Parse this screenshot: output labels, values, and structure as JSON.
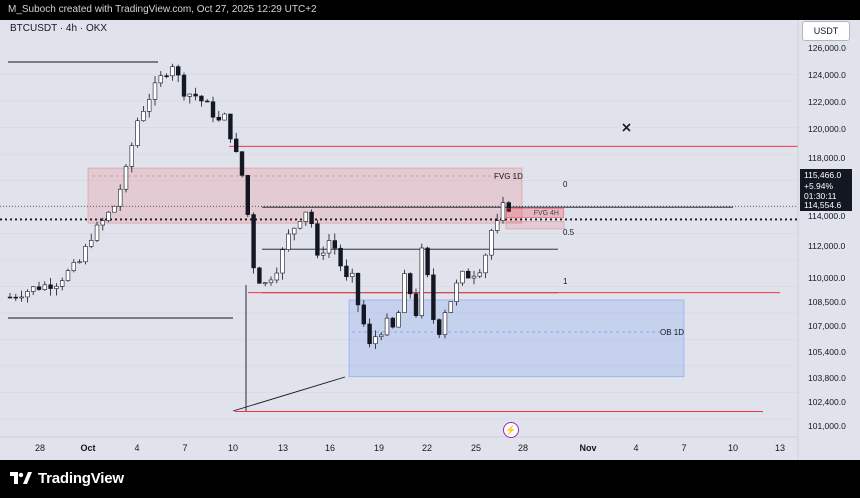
{
  "header": {
    "caption": "M_Suboch created with TradingView.com, Oct 27, 2025 12:29 UTC+2"
  },
  "chart": {
    "symbol": "BTCUSDT · 4h · OKX",
    "currency_button": "USDT",
    "price_tag": {
      "price": "115,466.0",
      "change": "+5.94%",
      "countdown": "01:30:11"
    },
    "level_tag": "114,554.6",
    "annotations": {
      "fvg_1d": "FVG 1D",
      "fvg_4h": "FVG 4H",
      "fib_0": "0",
      "fib_05": "0.5",
      "fib_1": "1",
      "ob_1d": "OB 1D"
    }
  },
  "y_axis": [
    "126,000.0",
    "124,000.0",
    "122,000.0",
    "120,000.0",
    "118,000.0",
    "116,000.0",
    "114,000.0",
    "112,000.0",
    "110,000.0",
    "108,500.0",
    "107,000.0",
    "105,400.0",
    "103,800.0",
    "102,400.0",
    "101,000.0"
  ],
  "x_axis": [
    "28",
    "Oct",
    "4",
    "7",
    "10",
    "13",
    "16",
    "19",
    "22",
    "25",
    "28",
    "Nov",
    "4",
    "7",
    "10",
    "13"
  ],
  "footer": {
    "logo_text": "TradingView"
  },
  "colors": {
    "bull": "#089981",
    "bear": "#f23645",
    "candle": "#131722",
    "fvg": "#f23645",
    "ob": "#2962ff",
    "background": "#e0e3eb"
  },
  "chart_data": {
    "type": "candlestick",
    "symbol": "BTCUSDT",
    "interval": "4h",
    "exchange": "OKX",
    "last_price": 115466.0,
    "change_percent": 5.94,
    "ylim": [
      100300,
      126800
    ],
    "zones": [
      {
        "label": "FVG 1D",
        "from_price": 114300,
        "to_price": 118100,
        "color": "#f23645"
      },
      {
        "label": "FVG 4H",
        "from_price": 113900,
        "to_price": 114400,
        "color": "#f23645"
      },
      {
        "label": "OB 1D",
        "from_price": 103700,
        "to_price": 109000,
        "color": "#2962ff"
      }
    ],
    "levels": [
      {
        "label": "0",
        "price": 115400
      },
      {
        "label": "0.5",
        "price": 112500
      },
      {
        "label": "1",
        "price": 109500
      },
      {
        "label": "",
        "price": 114554.6
      },
      {
        "label": "",
        "price": 119600
      },
      {
        "label": "",
        "price": 109500
      },
      {
        "label": "",
        "price": 101300
      }
    ],
    "price_path": [
      [
        0,
        109200
      ],
      [
        4,
        109800
      ],
      [
        8,
        110200
      ],
      [
        12,
        111600
      ],
      [
        14,
        113400
      ],
      [
        16,
        114400
      ],
      [
        18,
        115500
      ],
      [
        20,
        117900
      ],
      [
        22,
        121400
      ],
      [
        24,
        123000
      ],
      [
        26,
        124300
      ],
      [
        28,
        125300
      ],
      [
        30,
        123400
      ],
      [
        32,
        123100
      ],
      [
        34,
        122400
      ],
      [
        36,
        121300
      ],
      [
        37,
        121600
      ],
      [
        38,
        120400
      ],
      [
        40,
        117600
      ],
      [
        41,
        114900
      ],
      [
        42,
        111400
      ],
      [
        43,
        110400
      ],
      [
        44,
        110100
      ],
      [
        46,
        111200
      ],
      [
        48,
        113400
      ],
      [
        50,
        114700
      ],
      [
        51,
        115200
      ],
      [
        52,
        114300
      ],
      [
        53,
        111800
      ],
      [
        54,
        112500
      ],
      [
        55,
        113100
      ],
      [
        56,
        112600
      ],
      [
        57,
        111400
      ],
      [
        58,
        110400
      ],
      [
        59,
        110500
      ],
      [
        60,
        108700
      ],
      [
        61,
        107300
      ],
      [
        62,
        105800
      ],
      [
        63,
        106500
      ],
      [
        64,
        106900
      ],
      [
        65,
        107400
      ],
      [
        66,
        107000
      ],
      [
        67,
        108100
      ],
      [
        68,
        110500
      ],
      [
        69,
        109500
      ],
      [
        70,
        108100
      ],
      [
        71,
        112300
      ],
      [
        72,
        110500
      ],
      [
        73,
        107700
      ],
      [
        74,
        106900
      ],
      [
        75,
        108300
      ],
      [
        76,
        109000
      ],
      [
        77,
        110000
      ],
      [
        78,
        110700
      ],
      [
        79,
        110700
      ],
      [
        80,
        110900
      ],
      [
        81,
        111200
      ],
      [
        82,
        112200
      ],
      [
        83,
        113800
      ],
      [
        84,
        114200
      ],
      [
        85,
        115400
      ]
    ]
  }
}
